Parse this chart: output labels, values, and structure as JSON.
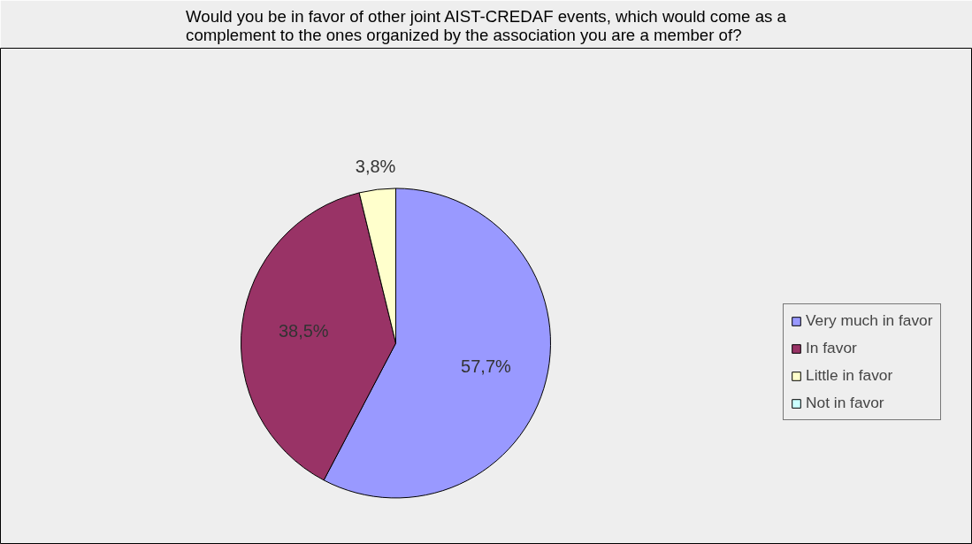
{
  "chart_data": {
    "type": "pie",
    "title": "Would you be in favor of other joint AIST-CREDAF events, which would come as a complement to the ones organized by the association you are a member of?",
    "categories": [
      "Very much in favor",
      "In favor",
      "Little in favor",
      "Not in favor"
    ],
    "values": [
      57.7,
      38.5,
      3.8,
      0
    ],
    "colors": [
      "#9999ff",
      "#993366",
      "#ffffcc",
      "#ccffff"
    ],
    "value_labels": [
      "57,7%",
      "38,5%",
      "3,8%",
      null
    ],
    "legend": "right"
  }
}
